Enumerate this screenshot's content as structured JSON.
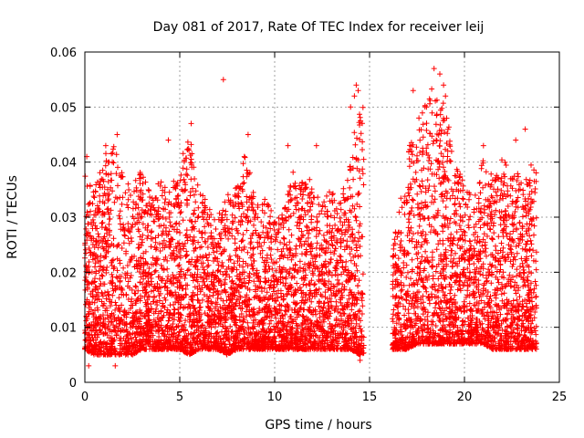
{
  "chart_data": {
    "type": "scatter",
    "title": "Day 081 of 2017, Rate Of TEC Index for receiver leij",
    "xlabel": "GPS time / hours",
    "ylabel": "ROTI / TECUs",
    "xlim": [
      0,
      25
    ],
    "ylim": [
      0,
      0.06
    ],
    "xticks": [
      0,
      5,
      10,
      15,
      20,
      25
    ],
    "yticks": [
      0,
      0.01,
      0.02,
      0.03,
      0.04,
      0.05,
      0.06
    ],
    "xtick_labels": [
      "0",
      "5",
      "10",
      "15",
      "20",
      "25"
    ],
    "ytick_labels": [
      "0",
      "0.01",
      "0.02",
      "0.03",
      "0.04",
      "0.05",
      "0.06"
    ],
    "grid": true,
    "marker": "+",
    "color": "#ff0000",
    "data_gap_hours": [
      14.7,
      16.2
    ],
    "envelope": {
      "x": [
        0.0,
        0.5,
        1.0,
        1.5,
        2.0,
        2.5,
        3.0,
        3.5,
        4.0,
        4.5,
        5.0,
        5.5,
        6.0,
        6.5,
        7.0,
        7.5,
        8.0,
        8.5,
        9.0,
        9.5,
        10.0,
        10.5,
        11.0,
        11.5,
        12.0,
        12.5,
        13.0,
        13.5,
        14.0,
        14.5,
        16.2,
        16.5,
        17.0,
        17.5,
        18.0,
        18.5,
        19.0,
        19.5,
        20.0,
        20.5,
        21.0,
        21.5,
        22.0,
        22.5,
        23.0,
        23.5,
        23.8
      ],
      "y_low": [
        0.006,
        0.005,
        0.005,
        0.005,
        0.005,
        0.005,
        0.006,
        0.006,
        0.006,
        0.006,
        0.006,
        0.005,
        0.006,
        0.006,
        0.006,
        0.005,
        0.006,
        0.006,
        0.006,
        0.006,
        0.006,
        0.006,
        0.006,
        0.006,
        0.006,
        0.006,
        0.006,
        0.006,
        0.006,
        0.005,
        0.006,
        0.006,
        0.006,
        0.007,
        0.007,
        0.007,
        0.007,
        0.007,
        0.007,
        0.007,
        0.007,
        0.006,
        0.006,
        0.006,
        0.006,
        0.006,
        0.006
      ],
      "y_high": [
        0.038,
        0.035,
        0.041,
        0.044,
        0.038,
        0.036,
        0.039,
        0.034,
        0.037,
        0.035,
        0.04,
        0.046,
        0.035,
        0.033,
        0.03,
        0.034,
        0.036,
        0.043,
        0.032,
        0.034,
        0.03,
        0.032,
        0.039,
        0.036,
        0.038,
        0.033,
        0.036,
        0.034,
        0.04,
        0.054,
        0.025,
        0.03,
        0.043,
        0.045,
        0.052,
        0.056,
        0.05,
        0.04,
        0.036,
        0.033,
        0.042,
        0.037,
        0.041,
        0.038,
        0.039,
        0.04,
        0.038
      ]
    },
    "notable_points": [
      {
        "x": 7.3,
        "y": 0.055
      },
      {
        "x": 14.3,
        "y": 0.054
      },
      {
        "x": 14.4,
        "y": 0.053
      },
      {
        "x": 14.2,
        "y": 0.052
      },
      {
        "x": 14.0,
        "y": 0.05
      },
      {
        "x": 18.4,
        "y": 0.057
      },
      {
        "x": 18.7,
        "y": 0.056
      },
      {
        "x": 18.9,
        "y": 0.054
      },
      {
        "x": 19.0,
        "y": 0.052
      },
      {
        "x": 18.0,
        "y": 0.05
      },
      {
        "x": 17.3,
        "y": 0.053
      },
      {
        "x": 17.6,
        "y": 0.048
      },
      {
        "x": 21.0,
        "y": 0.043
      },
      {
        "x": 22.7,
        "y": 0.044
      },
      {
        "x": 23.2,
        "y": 0.046
      },
      {
        "x": 5.6,
        "y": 0.047
      },
      {
        "x": 4.4,
        "y": 0.044
      },
      {
        "x": 8.6,
        "y": 0.045
      },
      {
        "x": 1.7,
        "y": 0.045
      },
      {
        "x": 1.1,
        "y": 0.043
      },
      {
        "x": 10.7,
        "y": 0.043
      },
      {
        "x": 12.2,
        "y": 0.043
      },
      {
        "x": 0.1,
        "y": 0.041
      },
      {
        "x": 0.2,
        "y": 0.003
      },
      {
        "x": 1.6,
        "y": 0.003
      },
      {
        "x": 14.5,
        "y": 0.004
      }
    ],
    "sample_count": 9000,
    "seed": 81
  }
}
